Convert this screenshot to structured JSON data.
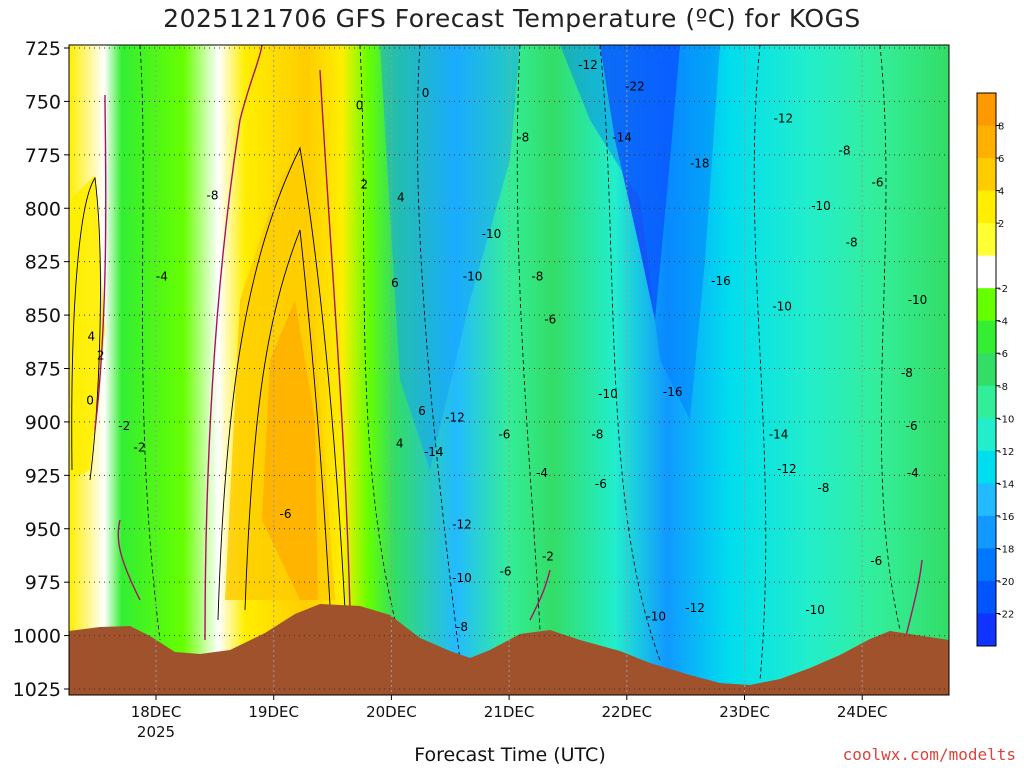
{
  "chart_data": {
    "type": "heatmap",
    "title": "2025121706 GFS Forecast Temperature (ºC) for KOGS",
    "xlabel": "Forecast Time (UTC)",
    "ylabel": "",
    "credit": "coolwx.com/modelts",
    "y_axis": {
      "ticks": [
        "725",
        "750",
        "775",
        "800",
        "825",
        "850",
        "875",
        "900",
        "925",
        "950",
        "975",
        "1000",
        "1025"
      ],
      "range": [
        725,
        1025
      ],
      "inverted": true,
      "grid": "dotted"
    },
    "x_axis": {
      "ticks": [
        {
          "label": "18DEC",
          "sub": "2025"
        },
        {
          "label": "19DEC",
          "sub": ""
        },
        {
          "label": "20DEC",
          "sub": ""
        },
        {
          "label": "21DEC",
          "sub": ""
        },
        {
          "label": "22DEC",
          "sub": ""
        },
        {
          "label": "23DEC",
          "sub": ""
        },
        {
          "label": "24DEC",
          "sub": ""
        }
      ],
      "grid": "dotted"
    },
    "colorbar": {
      "labels": [
        "8",
        "6",
        "4",
        "2",
        "-2",
        "-4",
        "-6",
        "-8",
        "-10",
        "-12",
        "-14",
        "-16",
        "-18",
        "-20",
        "-22"
      ],
      "colors": [
        "#ff9900",
        "#ffb000",
        "#ffcc00",
        "#ffee00",
        "#ffff33",
        "#ffffff",
        "#66ff00",
        "#33ee33",
        "#33dd66",
        "#33ee99",
        "#22eecc",
        "#00ddee",
        "#22bbff",
        "#1199ff",
        "#0077ff",
        "#0055ff",
        "#1133ff"
      ]
    },
    "contour_labels": [
      {
        "t": "-12",
        "d": 3.67,
        "p": 733
      },
      {
        "t": "-22",
        "d": 4.07,
        "p": 743
      },
      {
        "t": "0",
        "d": 1.73,
        "p": 752
      },
      {
        "t": "0",
        "d": 2.29,
        "p": 746
      },
      {
        "t": "-12",
        "d": 5.33,
        "p": 758
      },
      {
        "t": "-8",
        "d": 3.12,
        "p": 767
      },
      {
        "t": "-14",
        "d": 3.96,
        "p": 767
      },
      {
        "t": "-18",
        "d": 4.62,
        "p": 779
      },
      {
        "t": "-8",
        "d": 5.85,
        "p": 773
      },
      {
        "t": "2",
        "d": 1.77,
        "p": 789
      },
      {
        "t": "-8",
        "d": 0.48,
        "p": 794
      },
      {
        "t": "-6",
        "d": 6.13,
        "p": 788
      },
      {
        "t": "4",
        "d": 2.08,
        "p": 795
      },
      {
        "t": "-10",
        "d": 5.65,
        "p": 799
      },
      {
        "t": "-10",
        "d": 2.85,
        "p": 812
      },
      {
        "t": "-8",
        "d": 5.91,
        "p": 816
      },
      {
        "t": "-4",
        "d": 0.05,
        "p": 832
      },
      {
        "t": "6",
        "d": 2.03,
        "p": 835
      },
      {
        "t": "-10",
        "d": 2.69,
        "p": 832
      },
      {
        "t": "-8",
        "d": 3.24,
        "p": 832
      },
      {
        "t": "-16",
        "d": 4.8,
        "p": 834
      },
      {
        "t": "-6",
        "d": 3.35,
        "p": 852
      },
      {
        "t": "-10",
        "d": 5.32,
        "p": 846
      },
      {
        "t": "-10",
        "d": 6.47,
        "p": 843
      },
      {
        "t": "4",
        "d": -0.55,
        "p": 860
      },
      {
        "t": "2",
        "d": -0.47,
        "p": 869
      },
      {
        "t": "-16",
        "d": 4.39,
        "p": 886
      },
      {
        "t": "-10",
        "d": 3.84,
        "p": 887
      },
      {
        "t": "-8",
        "d": 6.38,
        "p": 877
      },
      {
        "t": "0",
        "d": -0.56,
        "p": 890
      },
      {
        "t": "6",
        "d": 2.26,
        "p": 895
      },
      {
        "t": "-12",
        "d": 2.54,
        "p": 898
      },
      {
        "t": "-6",
        "d": 6.42,
        "p": 902
      },
      {
        "t": "-2",
        "d": -0.27,
        "p": 902
      },
      {
        "t": "-6",
        "d": 2.96,
        "p": 906
      },
      {
        "t": "-8",
        "d": 3.75,
        "p": 906
      },
      {
        "t": "-14",
        "d": 5.29,
        "p": 906
      },
      {
        "t": "4",
        "d": 2.07,
        "p": 910
      },
      {
        "t": "-2",
        "d": -0.14,
        "p": 912
      },
      {
        "t": "-14",
        "d": 2.36,
        "p": 914
      },
      {
        "t": "-4",
        "d": 3.28,
        "p": 924
      },
      {
        "t": "-12",
        "d": 5.36,
        "p": 922
      },
      {
        "t": "-4",
        "d": 6.43,
        "p": 924
      },
      {
        "t": "-6",
        "d": 3.78,
        "p": 929
      },
      {
        "t": "-8",
        "d": 5.67,
        "p": 931
      },
      {
        "t": "-6",
        "d": 1.1,
        "p": 943
      },
      {
        "t": "-12",
        "d": 2.6,
        "p": 948
      },
      {
        "t": "-2",
        "d": 3.33,
        "p": 963
      },
      {
        "t": "-6",
        "d": 6.12,
        "p": 965
      },
      {
        "t": "-10",
        "d": 2.6,
        "p": 973
      },
      {
        "t": "-6",
        "d": 2.97,
        "p": 970
      },
      {
        "t": "-12",
        "d": 4.58,
        "p": 987
      },
      {
        "t": "-10",
        "d": 4.25,
        "p": 991
      },
      {
        "t": "-10",
        "d": 5.6,
        "p": 988
      },
      {
        "t": "-8",
        "d": 2.6,
        "p": 996
      }
    ]
  }
}
